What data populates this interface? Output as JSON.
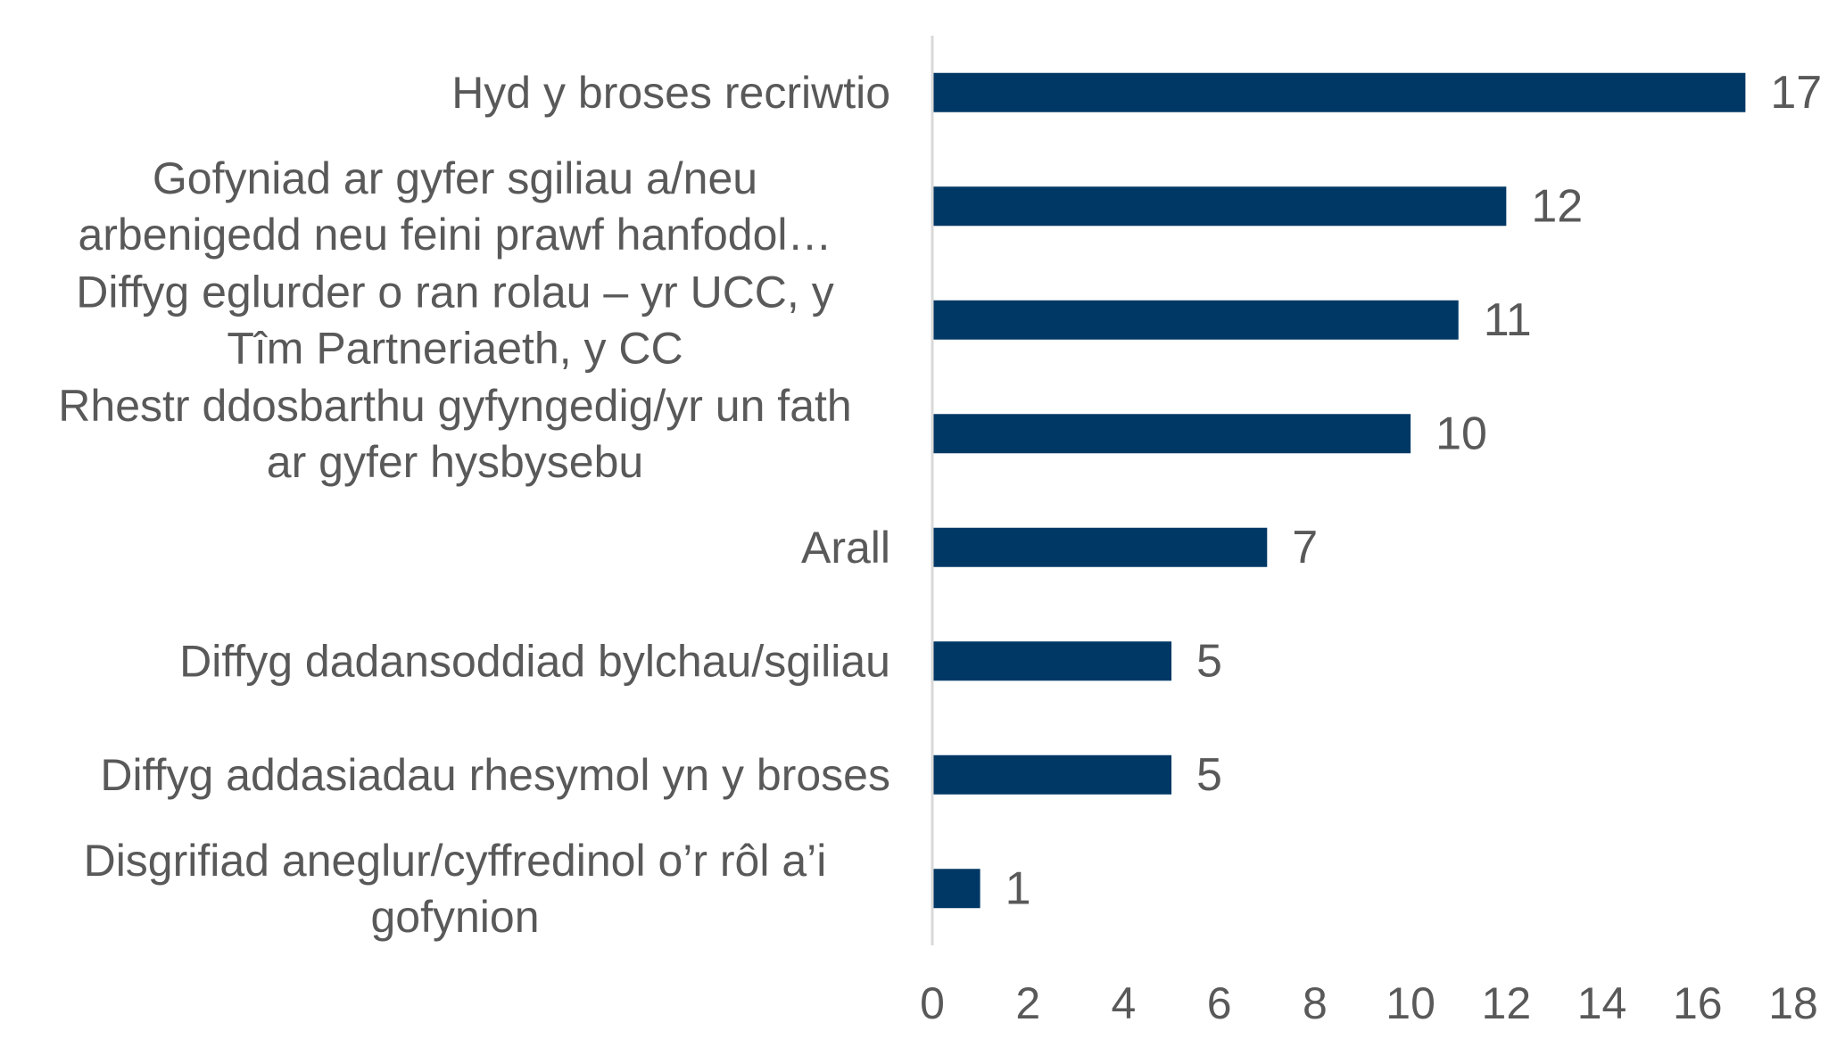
{
  "chart_data": {
    "type": "bar",
    "orientation": "horizontal",
    "title": "",
    "xlabel": "",
    "ylabel": "",
    "xlim": [
      0,
      18
    ],
    "x_ticks": [
      0,
      2,
      4,
      6,
      8,
      10,
      12,
      14,
      16,
      18
    ],
    "grid": false,
    "legend": "none",
    "data_labels": true,
    "categories": [
      [
        "Hyd y broses recriwtio"
      ],
      [
        "Gofyniad ar gyfer sgiliau a/neu",
        "arbenigedd neu feini prawf hanfodol…"
      ],
      [
        "Diffyg eglurder o ran rolau – yr UCC, y",
        "Tîm Partneriaeth, y CC"
      ],
      [
        "Rhestr ddosbarthu gyfyngedig/yr un fath",
        "ar gyfer hysbysebu"
      ],
      [
        "Arall"
      ],
      [
        "Diffyg dadansoddiad bylchau/sgiliau"
      ],
      [
        "Diffyg addasiadau rhesymol yn y broses"
      ],
      [
        "Disgrifiad aneglur/cyffredinol o’r rôl a’i",
        "gofynion"
      ]
    ],
    "values": [
      17,
      12,
      11,
      10,
      7,
      5,
      5,
      1
    ],
    "colors": {
      "bar": "#003865",
      "axis_line": "#d9d9d9",
      "text": "#595959"
    }
  }
}
